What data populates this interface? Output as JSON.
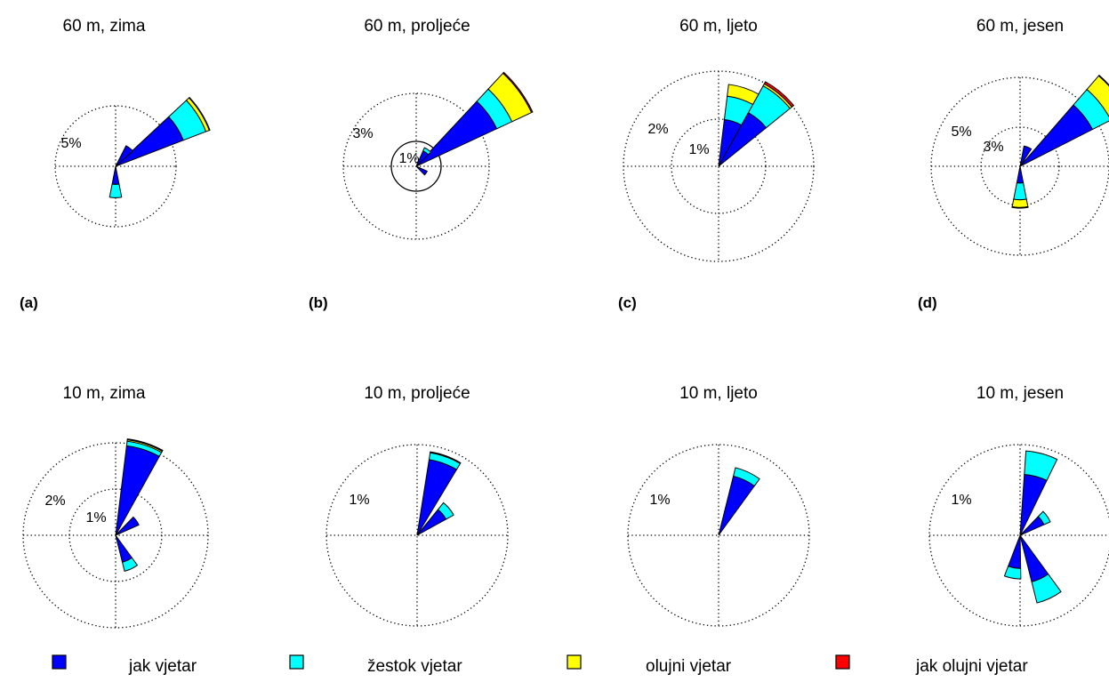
{
  "chart_data": [
    {
      "type": "wind-rose",
      "title": "60 m, zima",
      "panel_label": "(a)",
      "ring_labels": [
        "5%"
      ],
      "petals": [
        {
          "direction_deg": 58,
          "category_extents": {
            "jak vjetar": 6.0,
            "žestok vjetar": 8.0,
            "olujni vjetar": 8.3,
            "jak olujni vjetar": 8.35
          }
        },
        {
          "direction_deg": 38,
          "category_extents": {
            "jak vjetar": 1.9,
            "žestok vjetar": 1.9,
            "olujni vjetar": 1.9,
            "jak olujni vjetar": 1.9
          }
        },
        {
          "direction_deg": 180,
          "category_extents": {
            "jak vjetar": 1.5,
            "žestok vjetar": 2.6,
            "olujni vjetar": 2.6,
            "jak olujni vjetar": 2.6
          }
        }
      ]
    },
    {
      "type": "wind-rose",
      "title": "60 m, proljeće",
      "panel_label": "(b)",
      "ring_labels": [
        "3%",
        "1%"
      ],
      "petals": [
        {
          "direction_deg": 54,
          "category_extents": {
            "jak vjetar": 3.7,
            "žestok vjetar": 4.4,
            "olujni vjetar": 5.3,
            "jak olujni vjetar": 5.35
          }
        },
        {
          "direction_deg": 35,
          "category_extents": {
            "jak vjetar": 0.7,
            "žestok vjetar": 0.85,
            "olujni vjetar": 0.85,
            "jak olujni vjetar": 0.85
          }
        },
        {
          "direction_deg": 125,
          "category_extents": {
            "jak vjetar": 0.5,
            "žestok vjetar": 0.5,
            "olujni vjetar": 0.5,
            "jak olujni vjetar": 0.5
          }
        }
      ]
    },
    {
      "type": "wind-rose",
      "title": "60 m, ljeto",
      "panel_label": "(c)",
      "ring_labels": [
        "2%",
        "1%"
      ],
      "petals": [
        {
          "direction_deg": 40,
          "category_extents": {
            "jak vjetar": 1.3,
            "žestok vjetar": 1.95,
            "olujni vjetar": 2.0,
            "jak olujni vjetar": 2.05
          }
        },
        {
          "direction_deg": 18,
          "category_extents": {
            "jak vjetar": 1.0,
            "žestok vjetar": 1.5,
            "olujni vjetar": 1.75,
            "jak olujni vjetar": 1.75
          }
        }
      ]
    },
    {
      "type": "wind-rose",
      "title": "60 m, jesen",
      "panel_label": "(d)",
      "ring_labels": [
        "5%",
        "3%"
      ],
      "petals": [
        {
          "direction_deg": 52,
          "category_extents": {
            "jak vjetar": 6.3,
            "žestok vjetar": 7.9,
            "olujni vjetar": 9.3,
            "jak olujni vjetar": 9.35
          }
        },
        {
          "direction_deg": 22,
          "category_extents": {
            "jak vjetar": 1.6,
            "žestok vjetar": 1.6,
            "olujni vjetar": 1.6,
            "jak olujni vjetar": 1.6
          }
        },
        {
          "direction_deg": 180,
          "category_extents": {
            "jak vjetar": 1.3,
            "žestok vjetar": 2.6,
            "olujni vjetar": 3.2,
            "jak olujni vjetar": 3.25
          }
        }
      ]
    },
    {
      "type": "wind-rose",
      "title": "10 m, zima",
      "ring_labels": [
        "2%",
        "1%"
      ],
      "petals": [
        {
          "direction_deg": 18,
          "category_extents": {
            "jak vjetar": 1.95,
            "žestok vjetar": 2.05,
            "olujni vjetar": 2.08,
            "jak olujni vjetar": 2.1
          }
        },
        {
          "direction_deg": 55,
          "category_extents": {
            "jak vjetar": 0.55,
            "žestok vjetar": 0.55,
            "olujni vjetar": 0.55,
            "jak olujni vjetar": 0.55
          }
        },
        {
          "direction_deg": 155,
          "category_extents": {
            "jak vjetar": 0.6,
            "žestok vjetar": 0.8,
            "olujni vjetar": 0.8,
            "jak olujni vjetar": 0.8
          }
        }
      ]
    },
    {
      "type": "wind-rose",
      "title": "10 m, proljeće",
      "ring_labels": [
        "1%"
      ],
      "petals": [
        {
          "direction_deg": 20,
          "category_extents": {
            "jak vjetar": 0.88,
            "žestok vjetar": 0.96,
            "olujni vjetar": 0.96,
            "jak olujni vjetar": 0.97
          }
        },
        {
          "direction_deg": 50,
          "category_extents": {
            "jak vjetar": 0.38,
            "žestok vjetar": 0.48,
            "olujni vjetar": 0.48,
            "jak olujni vjetar": 0.48
          }
        }
      ]
    },
    {
      "type": "wind-rose",
      "title": "10 m, ljeto",
      "ring_labels": [
        "1%"
      ],
      "petals": [
        {
          "direction_deg": 25,
          "category_extents": {
            "jak vjetar": 0.7,
            "žestok vjetar": 0.8,
            "olujni vjetar": 0.8,
            "jak olujni vjetar": 0.8
          }
        }
      ]
    },
    {
      "type": "wind-rose",
      "title": "10 m, jesen",
      "ring_labels": [
        "1%"
      ],
      "petals": [
        {
          "direction_deg": 15,
          "category_extents": {
            "jak vjetar": 0.7,
            "žestok vjetar": 0.97,
            "olujni vjetar": 0.97,
            "jak olujni vjetar": 0.97
          }
        },
        {
          "direction_deg": 55,
          "category_extents": {
            "jak vjetar": 0.3,
            "žestok vjetar": 0.38,
            "olujni vjetar": 0.38,
            "jak olujni vjetar": 0.38
          }
        },
        {
          "direction_deg": 155,
          "category_extents": {
            "jak vjetar": 0.55,
            "žestok vjetar": 0.8,
            "olujni vjetar": 0.8,
            "jak olujni vjetar": 0.8
          }
        },
        {
          "direction_deg": 190,
          "category_extents": {
            "jak vjetar": 0.38,
            "žestok vjetar": 0.5,
            "olujni vjetar": 0.5,
            "jak olujni vjetar": 0.5
          }
        }
      ]
    }
  ],
  "legend": [
    {
      "label": "jak vjetar",
      "color": "#0000ff"
    },
    {
      "label": "žestok vjetar",
      "color": "#00ffff"
    },
    {
      "label": "olujni vjetar",
      "color": "#ffff00"
    },
    {
      "label": "jak olujni vjetar",
      "color": "#ff0000"
    }
  ]
}
